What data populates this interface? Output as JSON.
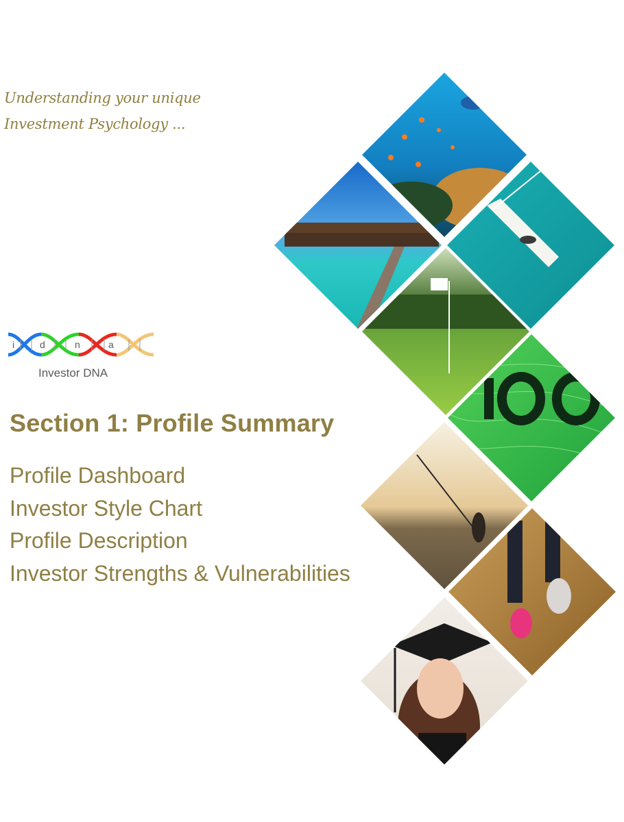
{
  "tagline": {
    "line1": "Understanding your unique",
    "line2": "Investment Psychology ..."
  },
  "logo": {
    "letters": [
      "i",
      "d",
      "n",
      "a"
    ],
    "subtitle": "Investor DNA",
    "colors": {
      "blue": "#1e78e6",
      "green": "#2fd22a",
      "red": "#e8291f",
      "gold": "#f2c678"
    }
  },
  "section": {
    "title": "Section 1: Profile Summary",
    "items": [
      "Profile Dashboard",
      "Investor Style Chart",
      "Profile Description",
      "Investor Strengths & Vulnerabilities"
    ]
  },
  "photo_tiles": [
    "coral-reef",
    "overwater-bungalows",
    "sailboat",
    "golf-flag",
    "banknote-100",
    "fishing-sunset",
    "running-shoes",
    "graduate"
  ],
  "colors": {
    "accent_text": "#8f7f44",
    "tagline": "#8f7f3f"
  }
}
